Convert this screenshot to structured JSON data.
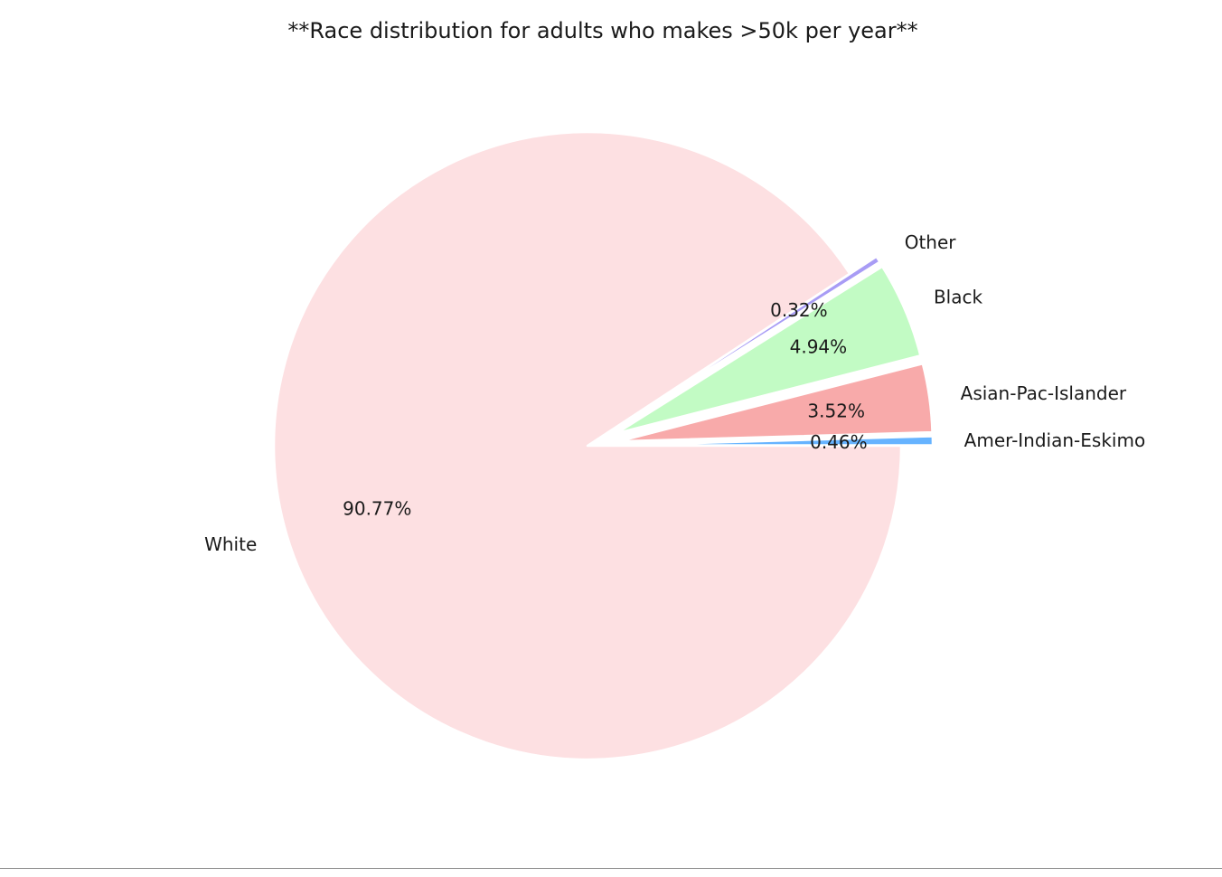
{
  "chart_data": {
    "type": "pie",
    "title": "**Race distribution for adults who makes >50k per year**",
    "start_angle_deg": 0,
    "direction": "counterclockwise",
    "slices": [
      {
        "label": "Amer-Indian-Eskimo",
        "pct_label": "0.46%",
        "value": 0.46,
        "color": "#66b3ff",
        "exploded": true
      },
      {
        "label": "Asian-Pac-Islander",
        "pct_label": "3.52%",
        "value": 3.52,
        "color": "#f8aaaa",
        "exploded": true
      },
      {
        "label": "Black",
        "pct_label": "4.94%",
        "value": 4.94,
        "color": "#c2fbc4",
        "exploded": true
      },
      {
        "label": "Other",
        "pct_label": "0.32%",
        "value": 0.32,
        "color": "#a89cf5",
        "exploded": true
      },
      {
        "label": "White",
        "pct_label": "90.77%",
        "value": 90.77,
        "color": "#fde0e2",
        "exploded": false
      }
    ]
  }
}
